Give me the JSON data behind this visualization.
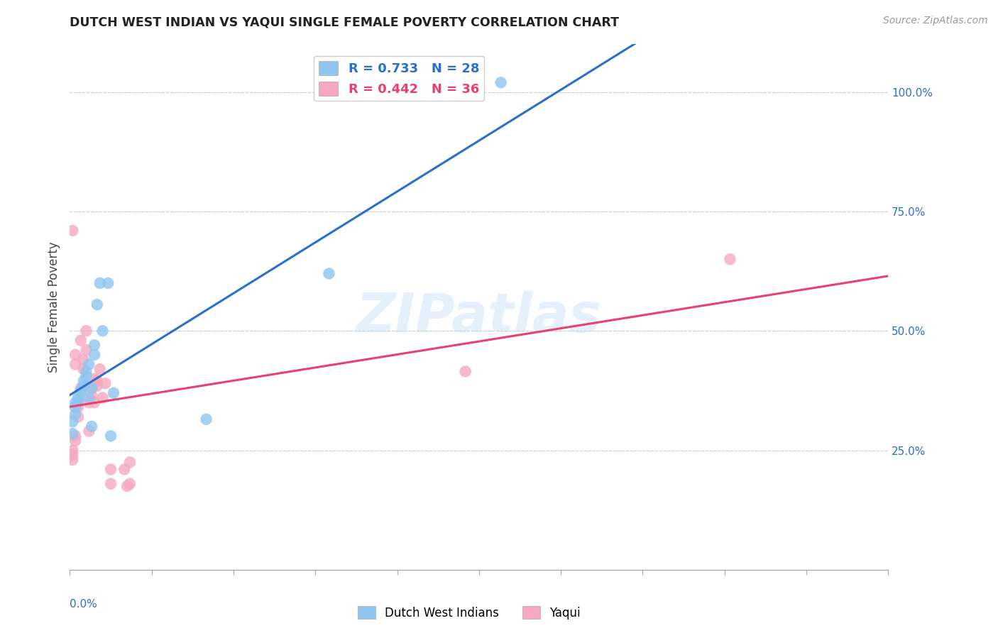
{
  "title": "DUTCH WEST INDIAN VS YAQUI SINGLE FEMALE POVERTY CORRELATION CHART",
  "source": "Source: ZipAtlas.com",
  "ylabel": "Single Female Poverty",
  "blue_color": "#8ec6f0",
  "pink_color": "#f5a8c0",
  "blue_line_color": "#2970c8",
  "pink_line_color": "#e84070",
  "watermark": "ZIPatlas",
  "legend_blue": "R = 0.733   N = 28",
  "legend_pink": "R = 0.442   N = 36",
  "legend_label_blue": "Dutch West Indians",
  "legend_label_pink": "Yaqui",
  "xlim": [
    0.0,
    0.3
  ],
  "ylim": [
    0.0,
    1.1
  ],
  "right_yticks": [
    0.25,
    0.5,
    0.75,
    1.0
  ],
  "right_yticklabels": [
    "25.0%",
    "50.0%",
    "75.0%",
    "100.0%"
  ],
  "blue_x": [
    0.001,
    0.001,
    0.002,
    0.002,
    0.002,
    0.003,
    0.003,
    0.004,
    0.004,
    0.005,
    0.005,
    0.006,
    0.006,
    0.007,
    0.007,
    0.008,
    0.008,
    0.009,
    0.009,
    0.01,
    0.011,
    0.012,
    0.014,
    0.015,
    0.016,
    0.05,
    0.095,
    0.158
  ],
  "blue_y": [
    0.285,
    0.31,
    0.325,
    0.34,
    0.35,
    0.355,
    0.36,
    0.37,
    0.375,
    0.385,
    0.395,
    0.405,
    0.415,
    0.43,
    0.36,
    0.3,
    0.38,
    0.45,
    0.47,
    0.555,
    0.6,
    0.5,
    0.6,
    0.28,
    0.37,
    0.315,
    0.62,
    1.02
  ],
  "pink_x": [
    0.001,
    0.001,
    0.001,
    0.001,
    0.002,
    0.002,
    0.002,
    0.002,
    0.003,
    0.003,
    0.003,
    0.004,
    0.004,
    0.005,
    0.005,
    0.006,
    0.006,
    0.007,
    0.007,
    0.008,
    0.008,
    0.009,
    0.009,
    0.01,
    0.01,
    0.011,
    0.012,
    0.013,
    0.015,
    0.015,
    0.02,
    0.021,
    0.022,
    0.022,
    0.145,
    0.242
  ],
  "pink_y": [
    0.23,
    0.24,
    0.25,
    0.71,
    0.27,
    0.28,
    0.43,
    0.45,
    0.32,
    0.34,
    0.35,
    0.38,
    0.48,
    0.42,
    0.44,
    0.46,
    0.5,
    0.29,
    0.35,
    0.365,
    0.38,
    0.4,
    0.35,
    0.385,
    0.395,
    0.42,
    0.36,
    0.39,
    0.18,
    0.21,
    0.21,
    0.175,
    0.225,
    0.18,
    0.415,
    0.65
  ]
}
